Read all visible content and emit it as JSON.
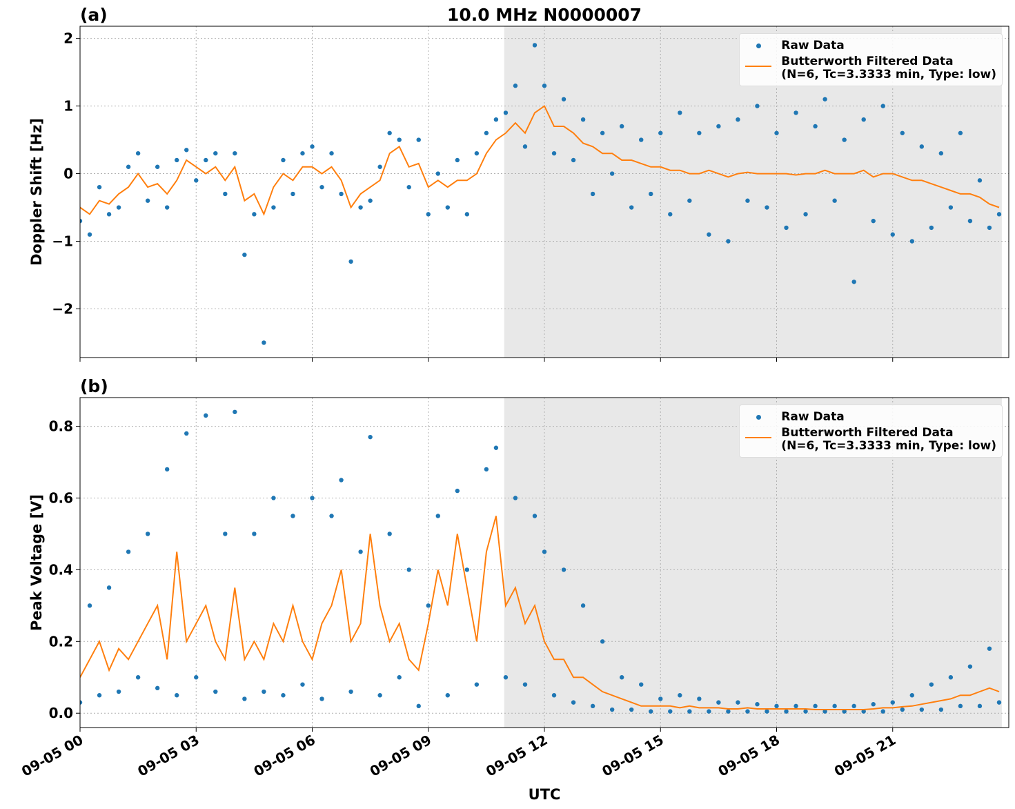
{
  "chart_data": [
    {
      "type": "scatter",
      "label": "(a)",
      "title": "10.0 MHz N0000007",
      "ylabel": "Doppler Shift [Hz]",
      "xlim": [
        0,
        24
      ],
      "ylim": [
        -2.72,
        2.18
      ],
      "grid": true,
      "legend": "upper right",
      "shade": [
        10.96,
        23.82
      ],
      "shade_color": "#e8e8e8",
      "xticks": [
        0,
        3,
        6,
        9,
        12,
        15,
        18,
        21
      ],
      "yticks": [
        {
          "value": -2,
          "label": "−2"
        },
        {
          "value": -1,
          "label": "−1"
        },
        0,
        1,
        2
      ],
      "x": [
        0,
        0.25,
        0.5,
        0.75,
        1,
        1.25,
        1.5,
        1.75,
        2,
        2.25,
        2.5,
        2.75,
        3,
        3.25,
        3.5,
        3.75,
        4,
        4.25,
        4.5,
        4.75,
        5,
        5.25,
        5.5,
        5.75,
        6,
        6.25,
        6.5,
        6.75,
        7,
        7.25,
        7.5,
        7.75,
        8,
        8.25,
        8.5,
        8.75,
        9,
        9.25,
        9.5,
        9.75,
        10,
        10.25,
        10.5,
        10.75,
        11,
        11.25,
        11.5,
        11.75,
        12,
        12.25,
        12.5,
        12.75,
        13,
        13.25,
        13.5,
        13.75,
        14,
        14.25,
        14.5,
        14.75,
        15,
        15.25,
        15.5,
        15.75,
        16,
        16.25,
        16.5,
        16.75,
        17,
        17.25,
        17.5,
        17.75,
        18,
        18.25,
        18.5,
        18.75,
        19,
        19.25,
        19.5,
        19.75,
        20,
        20.25,
        20.5,
        20.75,
        21,
        21.25,
        21.5,
        21.75,
        22,
        22.25,
        22.5,
        22.75,
        23,
        23.25,
        23.5,
        23.75
      ],
      "series": [
        {
          "name": "Raw Data",
          "style": "points",
          "color": "#1f77b4",
          "values": [
            -0.7,
            -0.9,
            -0.2,
            -0.6,
            -0.5,
            0.1,
            0.3,
            -0.4,
            0.1,
            -0.5,
            0.2,
            0.35,
            -0.1,
            0.2,
            0.3,
            -0.3,
            0.3,
            -1.2,
            -0.6,
            -2.5,
            -0.5,
            0.2,
            -0.3,
            0.3,
            0.4,
            -0.2,
            0.3,
            -0.3,
            -1.3,
            -0.5,
            -0.4,
            0.1,
            0.6,
            0.5,
            -0.2,
            0.5,
            -0.6,
            0.0,
            -0.5,
            0.2,
            -0.6,
            0.3,
            0.6,
            0.8,
            0.9,
            1.3,
            0.4,
            1.9,
            1.3,
            0.3,
            1.1,
            0.2,
            0.8,
            -0.3,
            0.6,
            0.0,
            0.7,
            -0.5,
            0.5,
            -0.3,
            0.6,
            -0.6,
            0.9,
            -0.4,
            0.6,
            -0.9,
            0.7,
            -1.0,
            0.8,
            -0.4,
            1.0,
            -0.5,
            0.6,
            -0.8,
            0.9,
            -0.6,
            0.7,
            1.1,
            -0.4,
            0.5,
            -1.6,
            0.8,
            -0.7,
            1.0,
            -0.9,
            0.6,
            -1.0,
            0.4,
            -0.8,
            0.3,
            -0.5,
            0.6,
            -0.7,
            -0.1,
            -0.8,
            -0.6
          ]
        },
        {
          "name": "Butterworth Filtered Data\n(N=6, Tc=3.3333 min, Type: low)",
          "style": "line",
          "color": "#ff7f0e",
          "values": [
            -0.5,
            -0.6,
            -0.4,
            -0.45,
            -0.3,
            -0.2,
            0.0,
            -0.2,
            -0.15,
            -0.3,
            -0.1,
            0.2,
            0.1,
            0.0,
            0.1,
            -0.1,
            0.1,
            -0.4,
            -0.3,
            -0.6,
            -0.2,
            0.0,
            -0.1,
            0.1,
            0.1,
            0.0,
            0.1,
            -0.1,
            -0.5,
            -0.3,
            -0.2,
            -0.1,
            0.3,
            0.4,
            0.1,
            0.15,
            -0.2,
            -0.1,
            -0.2,
            -0.1,
            -0.1,
            0.0,
            0.3,
            0.5,
            0.6,
            0.75,
            0.6,
            0.9,
            1.0,
            0.7,
            0.7,
            0.6,
            0.45,
            0.4,
            0.3,
            0.3,
            0.2,
            0.2,
            0.15,
            0.1,
            0.1,
            0.05,
            0.05,
            0.0,
            0.0,
            0.05,
            0.0,
            -0.05,
            0.0,
            0.02,
            0.0,
            0.0,
            0.0,
            0.0,
            -0.02,
            0.0,
            0.0,
            0.05,
            0.0,
            0.0,
            0.0,
            0.05,
            -0.05,
            0.0,
            0.0,
            -0.05,
            -0.1,
            -0.1,
            -0.15,
            -0.2,
            -0.25,
            -0.3,
            -0.3,
            -0.35,
            -0.45,
            -0.5
          ]
        }
      ]
    },
    {
      "type": "scatter",
      "label": "(b)",
      "ylabel": "Peak Voltage [V]",
      "xlabel": "UTC",
      "xlim": [
        0,
        24
      ],
      "ylim": [
        -0.04,
        0.88
      ],
      "grid": true,
      "legend": "upper right",
      "shade": [
        10.96,
        23.82
      ],
      "shade_color": "#e8e8e8",
      "xticks": [
        {
          "value": 0,
          "label": "09-05 00"
        },
        {
          "value": 3,
          "label": "09-05 03"
        },
        {
          "value": 6,
          "label": "09-05 06"
        },
        {
          "value": 9,
          "label": "09-05 09"
        },
        {
          "value": 12,
          "label": "09-05 12"
        },
        {
          "value": 15,
          "label": "09-05 15"
        },
        {
          "value": 18,
          "label": "09-05 18"
        },
        {
          "value": 21,
          "label": "09-05 21"
        }
      ],
      "yticks": [
        {
          "value": 0,
          "label": "0.0"
        },
        0.2,
        0.4,
        0.6,
        0.8
      ],
      "x": [
        0,
        0.25,
        0.5,
        0.75,
        1,
        1.25,
        1.5,
        1.75,
        2,
        2.25,
        2.5,
        2.75,
        3,
        3.25,
        3.5,
        3.75,
        4,
        4.25,
        4.5,
        4.75,
        5,
        5.25,
        5.5,
        5.75,
        6,
        6.25,
        6.5,
        6.75,
        7,
        7.25,
        7.5,
        7.75,
        8,
        8.25,
        8.5,
        8.75,
        9,
        9.25,
        9.5,
        9.75,
        10,
        10.25,
        10.5,
        10.75,
        11,
        11.25,
        11.5,
        11.75,
        12,
        12.25,
        12.5,
        12.75,
        13,
        13.25,
        13.5,
        13.75,
        14,
        14.25,
        14.5,
        14.75,
        15,
        15.25,
        15.5,
        15.75,
        16,
        16.25,
        16.5,
        16.75,
        17,
        17.25,
        17.5,
        17.75,
        18,
        18.25,
        18.5,
        18.75,
        19,
        19.25,
        19.5,
        19.75,
        20,
        20.25,
        20.5,
        20.75,
        21,
        21.25,
        21.5,
        21.75,
        22,
        22.25,
        22.5,
        22.75,
        23,
        23.25,
        23.5,
        23.75
      ],
      "series": [
        {
          "name": "Raw Data",
          "style": "points",
          "color": "#1f77b4",
          "values": [
            0.03,
            0.3,
            0.05,
            0.35,
            0.06,
            0.45,
            0.1,
            0.5,
            0.07,
            0.68,
            0.05,
            0.78,
            0.1,
            0.83,
            0.06,
            0.5,
            0.84,
            0.04,
            0.5,
            0.06,
            0.6,
            0.05,
            0.55,
            0.08,
            0.6,
            0.04,
            0.55,
            0.65,
            0.06,
            0.45,
            0.77,
            0.05,
            0.5,
            0.1,
            0.4,
            0.02,
            0.3,
            0.55,
            0.05,
            0.62,
            0.4,
            0.08,
            0.68,
            0.74,
            0.1,
            0.6,
            0.08,
            0.55,
            0.45,
            0.05,
            0.4,
            0.03,
            0.3,
            0.02,
            0.2,
            0.01,
            0.1,
            0.01,
            0.08,
            0.005,
            0.04,
            0.005,
            0.05,
            0.005,
            0.04,
            0.005,
            0.03,
            0.005,
            0.03,
            0.005,
            0.025,
            0.005,
            0.02,
            0.005,
            0.02,
            0.005,
            0.02,
            0.005,
            0.02,
            0.005,
            0.02,
            0.005,
            0.025,
            0.005,
            0.03,
            0.01,
            0.05,
            0.01,
            0.08,
            0.01,
            0.1,
            0.02,
            0.13,
            0.02,
            0.18,
            0.03
          ]
        },
        {
          "name": "Butterworth Filtered Data\n(N=6, Tc=3.3333 min, Type: low)",
          "style": "line",
          "color": "#ff7f0e",
          "values": [
            0.1,
            0.15,
            0.2,
            0.12,
            0.18,
            0.15,
            0.2,
            0.25,
            0.3,
            0.15,
            0.45,
            0.2,
            0.25,
            0.3,
            0.2,
            0.15,
            0.35,
            0.15,
            0.2,
            0.15,
            0.25,
            0.2,
            0.3,
            0.2,
            0.15,
            0.25,
            0.3,
            0.4,
            0.2,
            0.25,
            0.5,
            0.3,
            0.2,
            0.25,
            0.15,
            0.12,
            0.25,
            0.4,
            0.3,
            0.5,
            0.35,
            0.2,
            0.45,
            0.55,
            0.3,
            0.35,
            0.25,
            0.3,
            0.2,
            0.15,
            0.15,
            0.1,
            0.1,
            0.08,
            0.06,
            0.05,
            0.04,
            0.03,
            0.02,
            0.02,
            0.02,
            0.02,
            0.015,
            0.02,
            0.015,
            0.015,
            0.015,
            0.012,
            0.012,
            0.015,
            0.012,
            0.012,
            0.012,
            0.012,
            0.012,
            0.012,
            0.01,
            0.01,
            0.01,
            0.01,
            0.01,
            0.01,
            0.012,
            0.015,
            0.015,
            0.018,
            0.02,
            0.025,
            0.03,
            0.035,
            0.04,
            0.05,
            0.05,
            0.06,
            0.07,
            0.06
          ]
        }
      ]
    }
  ]
}
